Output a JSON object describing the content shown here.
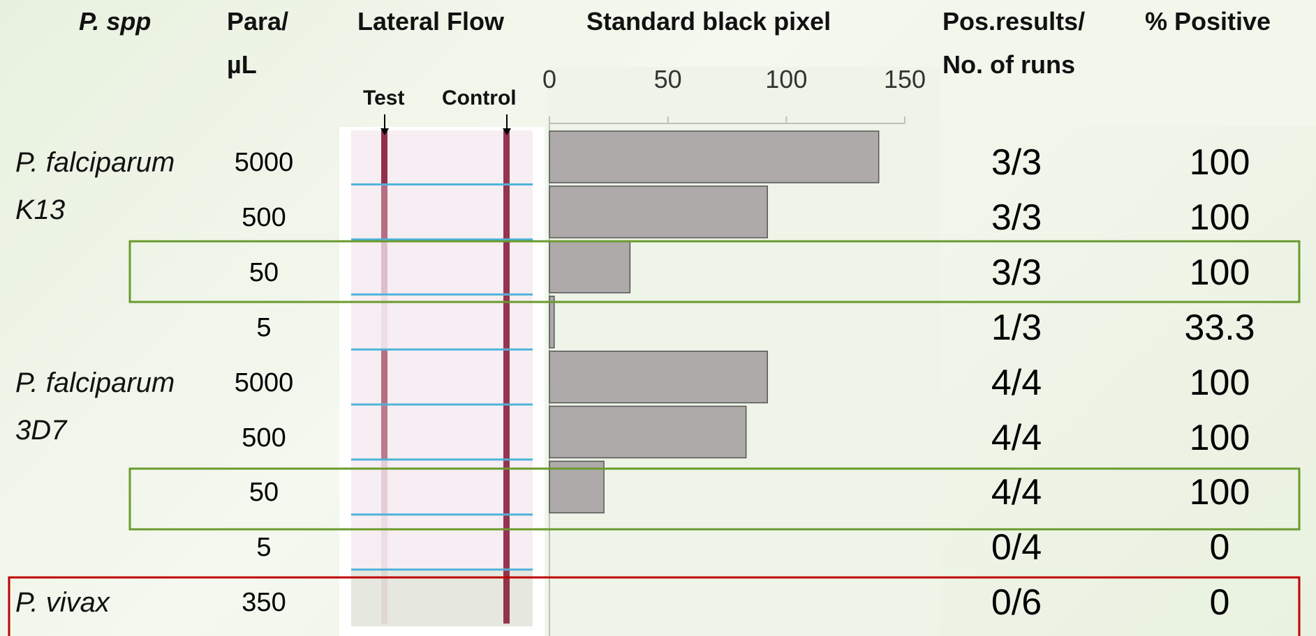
{
  "headers": {
    "species": "P. spp",
    "para": "Para/ µL",
    "lateral_flow": "Lateral Flow",
    "pos": "Pos.results/ No. of runs",
    "percent": "% Positive"
  },
  "strip_labels": {
    "test": "Test",
    "control": "Control"
  },
  "groups": [
    "P. falciparum K13",
    "P. falciparum 3D7",
    "P. vivax"
  ],
  "rows": [
    {
      "para": 5000,
      "pos": "3/3",
      "percent": 100
    },
    {
      "para": 500,
      "pos": "3/3",
      "percent": 100
    },
    {
      "para": 50,
      "pos": "3/3",
      "percent": 100
    },
    {
      "para": 5,
      "pos": "1/3",
      "percent": 33.3
    },
    {
      "para": 5000,
      "pos": "4/4",
      "percent": 100
    },
    {
      "para": 500,
      "pos": "4/4",
      "percent": 100
    },
    {
      "para": 50,
      "pos": "4/4",
      "percent": 100
    },
    {
      "para": 5,
      "pos": "0/4",
      "percent": 0
    },
    {
      "para": 350,
      "pos": "0/6",
      "percent": 0
    }
  ],
  "chart_data": {
    "type": "bar",
    "orientation": "horizontal",
    "title": "Standard black pixel",
    "values": [
      139,
      92,
      34,
      2,
      92,
      83,
      23,
      0,
      0
    ],
    "color": "#aeaaaa",
    "xlim": [
      0,
      150
    ],
    "xticks": [
      0,
      50,
      100,
      150
    ]
  }
}
